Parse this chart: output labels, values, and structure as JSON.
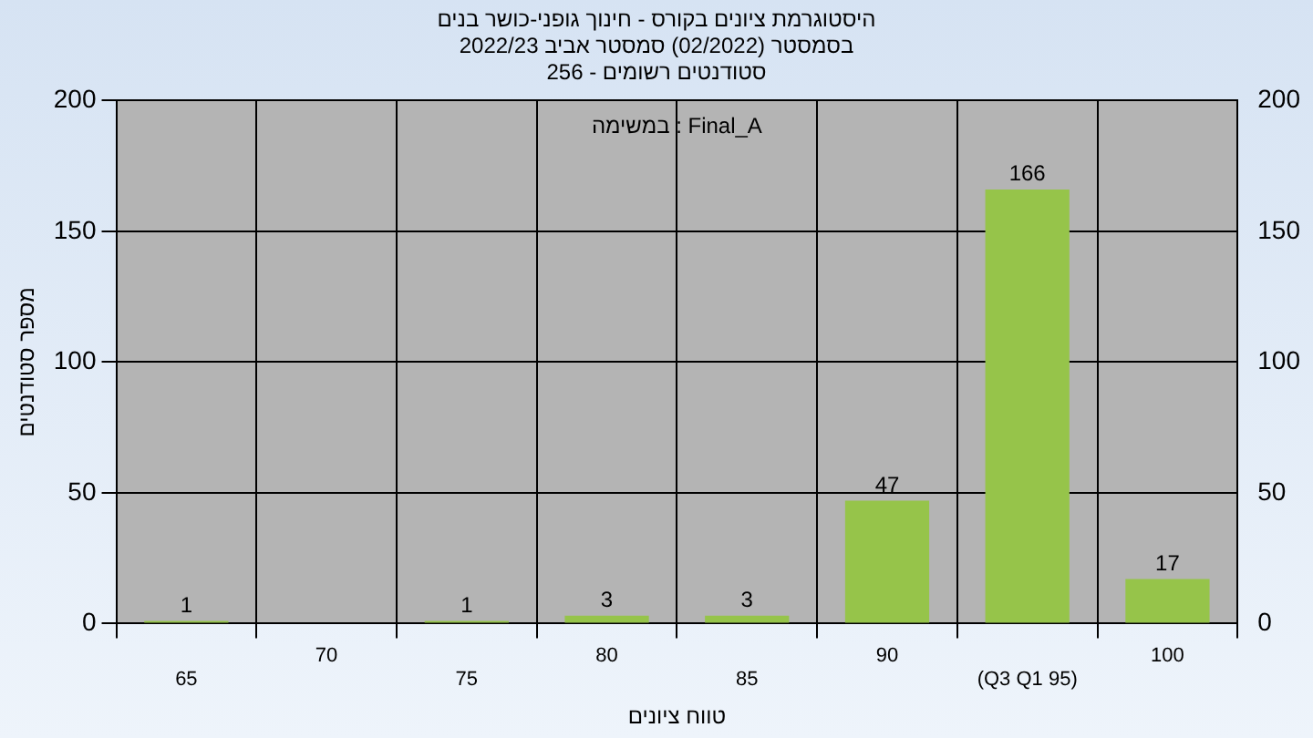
{
  "chart_data": {
    "type": "bar",
    "title": [
      "היסטוגרמת ציונים בקורס - חינוך גופני-כושר בנים",
      "בסמסטר (02/2022) סמסטר אביב 2022/23",
      "סטודנטים רשומים - 256"
    ],
    "xlabel": "טווח ציונים",
    "ylabel": "מספר סטודנטים",
    "categories": [
      "65",
      "70",
      "75",
      "80",
      "85",
      "90",
      "(Q3 Q1 95)",
      "100"
    ],
    "values": [
      1,
      0,
      1,
      3,
      3,
      47,
      166,
      17
    ],
    "value_labels": [
      "1",
      null,
      "1",
      "3",
      "3",
      "47",
      "166",
      "17"
    ],
    "color": "#96c44a",
    "ylim": [
      0,
      200
    ],
    "yticks": [
      0,
      50,
      100,
      150,
      200
    ],
    "y2lim": [
      0,
      200
    ],
    "y2ticks": [
      0,
      50,
      100,
      150,
      200
    ],
    "annotations": [
      "במשימה : Final_A"
    ],
    "grid": true,
    "legend": false
  }
}
